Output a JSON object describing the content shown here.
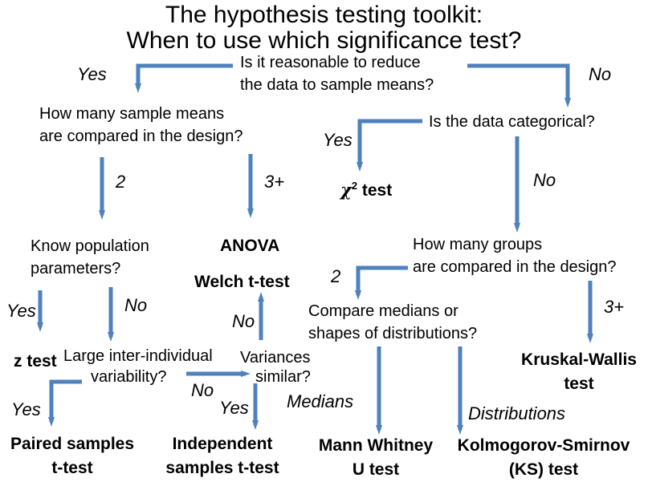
{
  "title": {
    "line1": "The hypothesis testing toolkit:",
    "line2": "When to use which significance test?"
  },
  "questions": {
    "reduce_line1": "Is it reasonable to reduce",
    "reduce_line2": "the data to sample means?",
    "sample_means_line1": "How many sample means",
    "sample_means_line2": "are compared in the design?",
    "categorical": "Is the data categorical?",
    "know_pop_line1": "Know population",
    "know_pop_line2": "parameters?",
    "groups_line1": "How many groups",
    "groups_line2": "are compared in the design?",
    "medians_line1": "Compare medians or",
    "medians_line2": "shapes of distributions?",
    "interindividual_line1": "Large inter-individual",
    "interindividual_line2": "variability?",
    "variances_line1": "Variances",
    "variances_line2": "similar?"
  },
  "labels": {
    "yes_reduce": "Yes",
    "no_reduce": "No",
    "yes_categorical": "Yes",
    "no_categorical": "No",
    "two_means": "2",
    "three_means": "3+",
    "two_groups": "2",
    "three_groups": "3+",
    "yes_know": "Yes",
    "no_know": "No",
    "no_variances": "No",
    "yes_variances": "Yes",
    "no_interindividual": "No",
    "yes_interindividual": "Yes",
    "medians": "Medians",
    "distributions": "Distributions"
  },
  "tests": {
    "chi_symbol": "χ",
    "chi_sup": "2",
    "chi_word": " test",
    "anova": "ANOVA",
    "welch": "Welch t-test",
    "z_test": "z test",
    "kruskal_line1": "Kruskal-Wallis",
    "kruskal_line2": "test",
    "paired_line1": "Paired samples",
    "paired_line2": "t-test",
    "independent_line1": "Independent",
    "independent_line2": "samples t-test",
    "mann_line1": "Mann Whitney",
    "mann_line2": "U test",
    "ks_line1": "Kolmogorov-Smirnov",
    "ks_line2": "(KS) test"
  },
  "colors": {
    "arrow": "#4F81BD"
  }
}
